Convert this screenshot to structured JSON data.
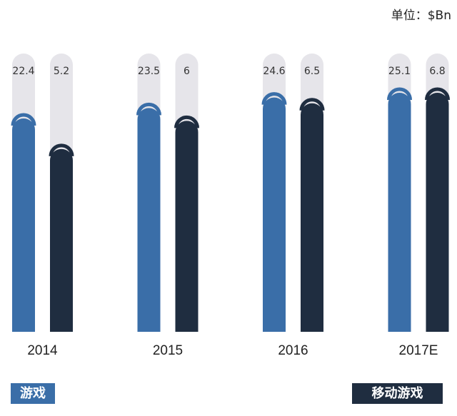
{
  "chart_data": {
    "type": "bar",
    "unit": "单位：$Bn",
    "categories": [
      "2014",
      "2015",
      "2016",
      "2017E"
    ],
    "series": [
      {
        "name": "游戏",
        "color": "#3a6ea8",
        "values": [
          22.4,
          23.5,
          24.6,
          25.1
        ]
      },
      {
        "name": "移动游戏",
        "color": "#1f2d40",
        "values": [
          5.2,
          6.0,
          6.5,
          6.8
        ]
      }
    ]
  }
}
